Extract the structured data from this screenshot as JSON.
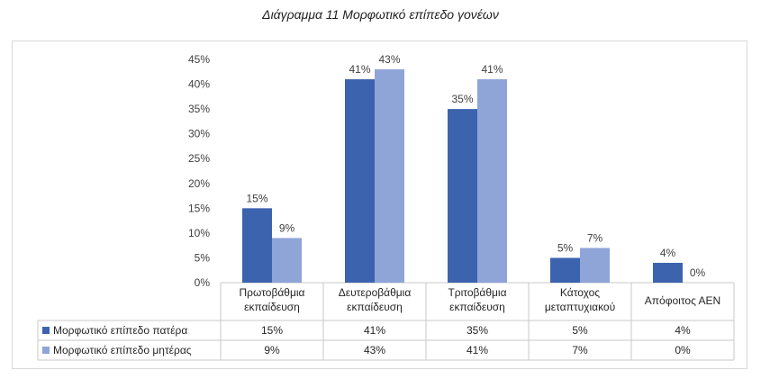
{
  "caption": "Διάγραμμα 11 Μορφωτικό επίπεδο γονέων",
  "chart_data": {
    "type": "bar",
    "title": "",
    "xlabel": "",
    "ylabel": "",
    "ylim": [
      0,
      45
    ],
    "yticks": [
      0,
      5,
      10,
      15,
      20,
      25,
      30,
      35,
      40,
      45
    ],
    "ytick_suffix": "%",
    "grid": false,
    "legend": "data-table",
    "categories": [
      [
        "Πρωτοβάθμια",
        "εκπαίδευση"
      ],
      [
        "Δευτεροβάθμια",
        "εκπαίδευση"
      ],
      [
        "Τριτοβάθμια",
        "εκπαίδευση"
      ],
      [
        "Κάτοχος",
        "μεταπτυχιακού"
      ],
      [
        "Απόφοιτος ΑΕΝ"
      ]
    ],
    "series": [
      {
        "name": "Μορφωτικό επίπεδο πατέρα",
        "color": "#3c63ae",
        "values": [
          15,
          41,
          35,
          5,
          4
        ],
        "labels": [
          "15%",
          "41%",
          "35%",
          "5%",
          "4%"
        ]
      },
      {
        "name": "Μορφωτικό επίπεδο μητέρας",
        "color": "#8fa5d8",
        "values": [
          9,
          43,
          41,
          7,
          0
        ],
        "labels": [
          "9%",
          "43%",
          "41%",
          "7%",
          "0%"
        ]
      }
    ]
  }
}
